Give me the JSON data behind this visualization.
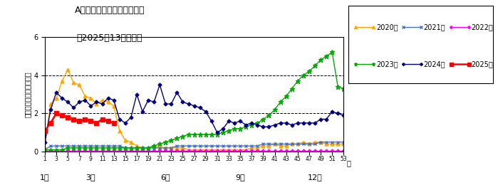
{
  "title_line1": "A群溶血性レンサ球菌咽頭炎",
  "title_line2": "（2025年13週まで）",
  "ylabel": "定点当たり患者数（人）",
  "xlabel_weeks": "週",
  "ylim": [
    0,
    6
  ],
  "yticks": [
    0,
    2,
    4,
    6
  ],
  "hlines": [
    2,
    4
  ],
  "month_labels": [
    "1月",
    "3月",
    "6月",
    "9月",
    "12月"
  ],
  "month_positions": [
    1,
    9,
    22,
    35,
    48
  ],
  "xticks": [
    1,
    3,
    5,
    7,
    9,
    11,
    13,
    15,
    17,
    19,
    21,
    23,
    25,
    27,
    29,
    31,
    33,
    35,
    37,
    39,
    41,
    43,
    45,
    47,
    49,
    51,
    53
  ],
  "series": {
    "2020": {
      "color": "#FFA500",
      "marker": "^",
      "linewidth": 1.0,
      "markersize": 3.5,
      "weeks": [
        1,
        2,
        3,
        4,
        5,
        6,
        7,
        8,
        9,
        10,
        11,
        12,
        13,
        14,
        15,
        16,
        17,
        18,
        19,
        20,
        21,
        22,
        23,
        24,
        25,
        26,
        27,
        28,
        29,
        30,
        31,
        32,
        33,
        34,
        35,
        36,
        37,
        38,
        39,
        40,
        41,
        42,
        43,
        44,
        45,
        46,
        47,
        48,
        49,
        50,
        51,
        52,
        53
      ],
      "values": [
        0.2,
        2.5,
        2.8,
        3.7,
        4.3,
        3.6,
        3.5,
        2.9,
        2.8,
        2.5,
        2.7,
        2.6,
        2.4,
        1.1,
        0.6,
        0.5,
        0.3,
        0.2,
        0.2,
        0.3,
        0.2,
        0.2,
        0.2,
        0.2,
        0.2,
        0.1,
        0.1,
        0.1,
        0.1,
        0.1,
        0.1,
        0.1,
        0.1,
        0.1,
        0.1,
        0.1,
        0.2,
        0.2,
        0.3,
        0.3,
        0.4,
        0.3,
        0.3,
        0.4,
        0.4,
        0.5,
        0.4,
        0.5,
        0.5,
        0.4,
        0.4,
        0.4,
        0.4
      ]
    },
    "2021": {
      "color": "#4472C4",
      "marker": "x",
      "linewidth": 1.0,
      "markersize": 3.5,
      "weeks": [
        1,
        2,
        3,
        4,
        5,
        6,
        7,
        8,
        9,
        10,
        11,
        12,
        13,
        14,
        15,
        16,
        17,
        18,
        19,
        20,
        21,
        22,
        23,
        24,
        25,
        26,
        27,
        28,
        29,
        30,
        31,
        32,
        33,
        34,
        35,
        36,
        37,
        38,
        39,
        40,
        41,
        42,
        43,
        44,
        45,
        46,
        47,
        48,
        49,
        50,
        51,
        52,
        53
      ],
      "values": [
        0.1,
        0.3,
        0.3,
        0.3,
        0.3,
        0.3,
        0.3,
        0.3,
        0.3,
        0.3,
        0.3,
        0.3,
        0.3,
        0.3,
        0.2,
        0.2,
        0.2,
        0.2,
        0.2,
        0.2,
        0.2,
        0.2,
        0.2,
        0.3,
        0.3,
        0.3,
        0.3,
        0.3,
        0.3,
        0.3,
        0.3,
        0.3,
        0.3,
        0.3,
        0.3,
        0.3,
        0.3,
        0.3,
        0.4,
        0.4,
        0.4,
        0.4,
        0.4,
        0.4,
        0.4,
        0.4,
        0.4,
        0.4,
        0.5,
        0.5,
        0.5,
        0.5,
        0.5
      ]
    },
    "2022": {
      "color": "#FF00FF",
      "marker": "D",
      "linewidth": 1.0,
      "markersize": 2.5,
      "weeks": [
        1,
        2,
        3,
        4,
        5,
        6,
        7,
        8,
        9,
        10,
        11,
        12,
        13,
        14,
        15,
        16,
        17,
        18,
        19,
        20,
        21,
        22,
        23,
        24,
        25,
        26,
        27,
        28,
        29,
        30,
        31,
        32,
        33,
        34,
        35,
        36,
        37,
        38,
        39,
        40,
        41,
        42,
        43,
        44,
        45,
        46,
        47,
        48,
        49,
        50,
        51,
        52,
        53
      ],
      "values": [
        0.05,
        0.05,
        0.05,
        0.05,
        0.05,
        0.05,
        0.05,
        0.05,
        0.05,
        0.05,
        0.05,
        0.05,
        0.05,
        0.05,
        0.05,
        0.05,
        0.05,
        0.05,
        0.05,
        0.05,
        0.05,
        0.05,
        0.05,
        0.05,
        0.05,
        0.05,
        0.05,
        0.05,
        0.05,
        0.05,
        0.05,
        0.05,
        0.05,
        0.05,
        0.05,
        0.05,
        0.05,
        0.05,
        0.05,
        0.05,
        0.05,
        0.05,
        0.05,
        0.05,
        0.05,
        0.05,
        0.05,
        0.05,
        0.05,
        0.05,
        0.05,
        0.05,
        0.05
      ]
    },
    "2023": {
      "color": "#00AA00",
      "marker": "*",
      "linewidth": 1.0,
      "markersize": 4.5,
      "weeks": [
        1,
        2,
        3,
        4,
        5,
        6,
        7,
        8,
        9,
        10,
        11,
        12,
        13,
        14,
        15,
        16,
        17,
        18,
        19,
        20,
        21,
        22,
        23,
        24,
        25,
        26,
        27,
        28,
        29,
        30,
        31,
        32,
        33,
        34,
        35,
        36,
        37,
        38,
        39,
        40,
        41,
        42,
        43,
        44,
        45,
        46,
        47,
        48,
        49,
        50,
        51,
        52,
        53
      ],
      "values": [
        0.1,
        0.1,
        0.1,
        0.1,
        0.2,
        0.2,
        0.2,
        0.2,
        0.2,
        0.2,
        0.2,
        0.2,
        0.2,
        0.2,
        0.2,
        0.2,
        0.2,
        0.2,
        0.2,
        0.3,
        0.4,
        0.5,
        0.6,
        0.7,
        0.8,
        0.9,
        0.9,
        0.9,
        0.9,
        0.9,
        0.9,
        1.0,
        1.1,
        1.2,
        1.2,
        1.3,
        1.4,
        1.5,
        1.7,
        1.9,
        2.2,
        2.6,
        2.9,
        3.3,
        3.7,
        4.0,
        4.2,
        4.5,
        4.8,
        5.0,
        5.2,
        3.4,
        3.3
      ]
    },
    "2024": {
      "color": "#000080",
      "marker": "D",
      "linewidth": 1.0,
      "markersize": 2.5,
      "weeks": [
        1,
        2,
        3,
        4,
        5,
        6,
        7,
        8,
        9,
        10,
        11,
        12,
        13,
        14,
        15,
        16,
        17,
        18,
        19,
        20,
        21,
        22,
        23,
        24,
        25,
        26,
        27,
        28,
        29,
        30,
        31,
        32,
        33,
        34,
        35,
        36,
        37,
        38,
        39,
        40,
        41,
        42,
        43,
        44,
        45,
        46,
        47,
        48,
        49,
        50,
        51,
        52,
        53
      ],
      "values": [
        0.5,
        2.2,
        3.1,
        2.8,
        2.6,
        2.3,
        2.6,
        2.7,
        2.4,
        2.6,
        2.5,
        2.8,
        2.7,
        1.7,
        1.5,
        1.8,
        3.0,
        2.1,
        2.7,
        2.6,
        3.5,
        2.5,
        2.5,
        3.1,
        2.6,
        2.5,
        2.4,
        2.3,
        2.1,
        1.6,
        1.0,
        1.2,
        1.6,
        1.5,
        1.6,
        1.4,
        1.5,
        1.4,
        1.3,
        1.3,
        1.4,
        1.5,
        1.5,
        1.4,
        1.5,
        1.5,
        1.5,
        1.5,
        1.7,
        1.7,
        2.1,
        2.0,
        1.9
      ]
    },
    "2025": {
      "color": "#FF0000",
      "marker": "s",
      "linewidth": 1.8,
      "markersize": 4.5,
      "weeks": [
        1,
        2,
        3,
        4,
        5,
        6,
        7,
        8,
        9,
        10,
        11,
        12,
        13
      ],
      "values": [
        1.1,
        1.5,
        2.0,
        1.9,
        1.8,
        1.7,
        1.6,
        1.7,
        1.6,
        1.5,
        1.7,
        1.6,
        1.5
      ]
    }
  },
  "legend_row1": [
    "2020",
    "2021",
    "2022"
  ],
  "legend_row2": [
    "2023",
    "2024",
    "2025"
  ],
  "legend_labels": {
    "2020": "2020年",
    "2021": "2021年",
    "2022": "2022年",
    "2023": "2023年",
    "2024": "2024年",
    "2025": "2025年"
  },
  "background_color": "#FFFFFF"
}
